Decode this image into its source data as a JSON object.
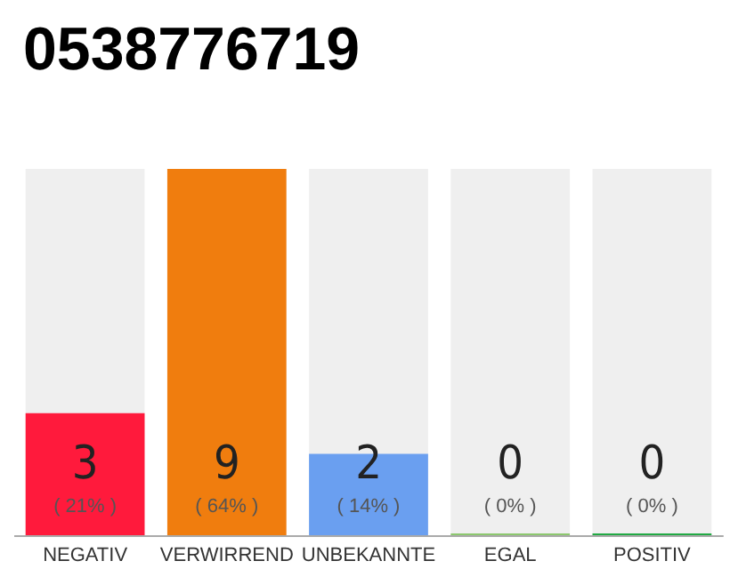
{
  "chart_data": {
    "type": "bar",
    "title": "0538776719",
    "categories": [
      "NEGATIV",
      "VERWIRREND",
      "UNBEKANNTE",
      "EGAL",
      "POSITIV"
    ],
    "values": [
      3,
      9,
      2,
      0,
      0
    ],
    "colors": [
      "#ff1a3c",
      "#f07d0e",
      "#6a9ff0",
      "#8cc86e",
      "#22aa44"
    ],
    "data_labels": true,
    "annotations": [
      "( 21% )",
      "( 64% )",
      "( 14% )",
      "( 0% )",
      "( 0% )"
    ]
  }
}
